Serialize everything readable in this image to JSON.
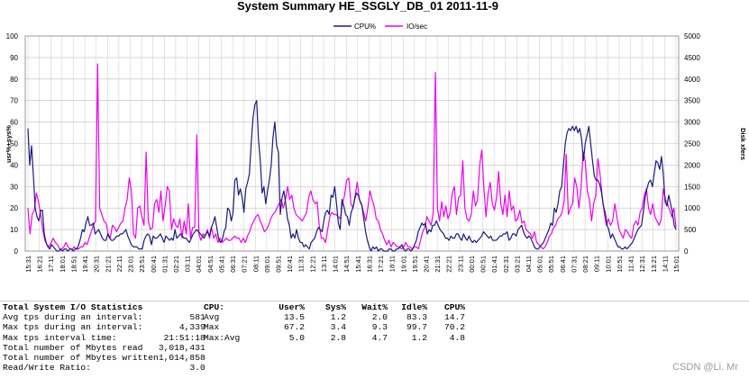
{
  "chart_data": {
    "type": "line",
    "title": "System Summary HE_SSGLY_DB_01  2011-11-9",
    "xlabel": "",
    "ylabel": "usr%+sys%",
    "y2label": "Disk xfers",
    "ylim": [
      0,
      100
    ],
    "y2lim": [
      0,
      5000
    ],
    "y_ticks": [
      0,
      10,
      20,
      30,
      40,
      50,
      60,
      70,
      80,
      90,
      100
    ],
    "y2_ticks": [
      0,
      500,
      1000,
      1500,
      2000,
      2500,
      3000,
      3500,
      4000,
      4500,
      5000
    ],
    "x_tick_labels": [
      "15:31",
      "16:21",
      "17:11",
      "18:01",
      "18:51",
      "19:41",
      "20:31",
      "21:21",
      "22:11",
      "23:01",
      "23:51",
      "00:41",
      "01:31",
      "02:21",
      "03:11",
      "04:01",
      "04:51",
      "05:41",
      "06:31",
      "07:21",
      "08:11",
      "09:01",
      "09:51",
      "10:41",
      "11:31",
      "12:21",
      "13:11",
      "14:01",
      "14:51",
      "15:41",
      "16:31",
      "17:21",
      "18:11",
      "19:01",
      "19:51",
      "20:41",
      "21:31",
      "22:21",
      "23:11",
      "00:01",
      "00:51",
      "01:41",
      "02:31",
      "03:21",
      "04:11",
      "05:01",
      "05:51",
      "06:41",
      "07:31",
      "08:21",
      "09:11",
      "10:01",
      "10:51",
      "11:41",
      "12:31",
      "13:21",
      "14:11",
      "15:01"
    ],
    "legend": [
      "CPU%",
      "IO/sec"
    ],
    "legend_position": "top",
    "grid": true,
    "series": [
      {
        "name": "CPU%",
        "axis": "left",
        "color": "#1a1a7e",
        "values": [
          57,
          40,
          49,
          35,
          20,
          16,
          14,
          19,
          19,
          8,
          4,
          2,
          1,
          3,
          2,
          1,
          0,
          0,
          1,
          0,
          1,
          1,
          0,
          1,
          1,
          0,
          1,
          1,
          3,
          6,
          10,
          9,
          13,
          16,
          12,
          12,
          13,
          8,
          9,
          10,
          8,
          6,
          5,
          5,
          8,
          6,
          5,
          5,
          6,
          7,
          7,
          8,
          8,
          9,
          10,
          7,
          5,
          3,
          2,
          2,
          2,
          1,
          1,
          1,
          5,
          7,
          8,
          7,
          3,
          7,
          6,
          6,
          7,
          8,
          6,
          4,
          7,
          6,
          5,
          6,
          5,
          10,
          6,
          7,
          8,
          7,
          6,
          6,
          5,
          4,
          6,
          8,
          9,
          10,
          9,
          8,
          7,
          6,
          8,
          9,
          7,
          11,
          13,
          16,
          11,
          6,
          4,
          5,
          9,
          11,
          20,
          19,
          14,
          18,
          33,
          34,
          26,
          29,
          25,
          18,
          29,
          32,
          36,
          50,
          62,
          68,
          70,
          52,
          42,
          27,
          30,
          22,
          28,
          33,
          40,
          53,
          60,
          49,
          46,
          17,
          25,
          28,
          22,
          15,
          12,
          6,
          8,
          6,
          10,
          6,
          4,
          4,
          2,
          3,
          2,
          1,
          4,
          5,
          6,
          9,
          11,
          10,
          9,
          14,
          18,
          19,
          17,
          26,
          25,
          30,
          22,
          13,
          10,
          24,
          21,
          17,
          16,
          12,
          18,
          20,
          24,
          27,
          26,
          23,
          21,
          15,
          9,
          5,
          2,
          0,
          2,
          1,
          2,
          0,
          1,
          1,
          0,
          0,
          0,
          1,
          1,
          0,
          0,
          1,
          1,
          2,
          3,
          1,
          0,
          1,
          1,
          0,
          1,
          3,
          5,
          9,
          11,
          13,
          12,
          13,
          8,
          10,
          9,
          12,
          12,
          14,
          12,
          10,
          9,
          8,
          6,
          6,
          5,
          7,
          6,
          6,
          8,
          8,
          6,
          5,
          8,
          6,
          5,
          7,
          5,
          4,
          5,
          4,
          5,
          6,
          7,
          9,
          8,
          7,
          6,
          7,
          5,
          5,
          5,
          6,
          7,
          7,
          8,
          8,
          9,
          5,
          6,
          8,
          8,
          7,
          10,
          11,
          12,
          9,
          7,
          6,
          7,
          6,
          4,
          2,
          1,
          1,
          2,
          3,
          4,
          6,
          8,
          10,
          13,
          12,
          20,
          18,
          22,
          28,
          30,
          40,
          50,
          55,
          57,
          56,
          58,
          56,
          58,
          55,
          57,
          52,
          42,
          50,
          54,
          58,
          50,
          42,
          35,
          33,
          33,
          31,
          27,
          21,
          18,
          12,
          10,
          6,
          8,
          6,
          4,
          2,
          2,
          1,
          1,
          2,
          1,
          2,
          3,
          4,
          6,
          8,
          10,
          11,
          12,
          18,
          25,
          29,
          32,
          33,
          30,
          36,
          42,
          41,
          38,
          44,
          36,
          23,
          21,
          26,
          22,
          18,
          12,
          10
        ]
      },
      {
        "name": "IO/sec",
        "axis": "right",
        "color": "#ee00ee",
        "values": [
          1000,
          400,
          850,
          950,
          1350,
          1150,
          850,
          500,
          250,
          150,
          100,
          200,
          300,
          200,
          150,
          50,
          50,
          100,
          200,
          100,
          50,
          50,
          100,
          50,
          50,
          100,
          100,
          200,
          150,
          300,
          450,
          600,
          700,
          4350,
          1000,
          850,
          700,
          650,
          400,
          300,
          600,
          550,
          450,
          550,
          650,
          700,
          1000,
          1200,
          1700,
          1400,
          400,
          300,
          1000,
          1050,
          800,
          600,
          2300,
          700,
          500,
          550,
          1100,
          1200,
          900,
          1400,
          700,
          1050,
          1500,
          1400,
          500,
          750,
          600,
          550,
          750,
          300,
          700,
          400,
          1100,
          300,
          550,
          550,
          2700,
          400,
          250,
          400,
          350,
          500,
          300,
          550,
          300,
          400,
          200,
          300,
          200,
          250,
          300,
          250,
          250,
          300,
          350,
          300,
          300,
          200,
          300,
          200,
          350,
          450,
          600,
          700,
          800,
          850,
          700,
          600,
          450,
          500,
          600,
          750,
          850,
          900,
          1000,
          1100,
          1200,
          1000,
          1200,
          1500,
          1200,
          1300,
          1000,
          850,
          800,
          750,
          700,
          800,
          900,
          1250,
          1400,
          1200,
          1100,
          1150,
          600,
          300,
          300,
          200,
          500,
          800,
          900,
          850,
          850,
          800,
          750,
          1100,
          1300,
          1650,
          1700,
          1100,
          1000,
          1300,
          1600,
          1200,
          1100,
          900,
          700,
          1000,
          1400,
          1200,
          1050,
          750,
          700,
          500,
          400,
          250,
          150,
          250,
          100,
          200,
          150,
          100,
          100,
          50,
          100,
          200,
          100,
          100,
          50,
          100,
          100,
          50,
          250,
          450,
          550,
          800,
          700,
          600,
          900,
          4150,
          1000,
          700,
          1150,
          800,
          1050,
          750,
          900,
          1350,
          1500,
          850,
          1250,
          1300,
          2100,
          1000,
          750,
          700,
          850,
          1400,
          1050,
          1200,
          2000,
          2350,
          1450,
          800,
          1350,
          1600,
          1100,
          950,
          1250,
          1850,
          1100,
          850,
          1300,
          800,
          1400,
          950,
          1050,
          700,
          750,
          950,
          650,
          700,
          500,
          450,
          400,
          300,
          450,
          200,
          150,
          100,
          50,
          100,
          200,
          350,
          400,
          550,
          600,
          750,
          800,
          900,
          1150,
          2250,
          850,
          1000,
          1100,
          1700,
          1500,
          1000,
          1450,
          2300,
          2100,
          1400,
          1200,
          700,
          1100,
          1300,
          2150,
          1800,
          1300,
          900,
          600,
          750,
          600,
          700,
          1100,
          800,
          500,
          400,
          300,
          500,
          450,
          350,
          300,
          600,
          700,
          600,
          900,
          1000,
          1300,
          1450,
          1000,
          850,
          1100,
          800,
          700,
          600,
          750,
          1450,
          1200,
          1100,
          950,
          800,
          1000,
          550
        ]
      }
    ]
  },
  "io_stats": {
    "title": "Total System I/O Statistics",
    "rows": [
      {
        "label": "Avg tps during an interval:",
        "value": "581"
      },
      {
        "label": "Max tps during an interval:",
        "value": "4,339"
      },
      {
        "label": "Max tps interval time:",
        "value": "21:51:18"
      },
      {
        "label": "Total number of Mbytes read",
        "value": "3,018,431"
      },
      {
        "label": "Total number of Mbytes written",
        "value": "1,014,858"
      },
      {
        "label": "Read/Write Ratio:",
        "value": "3.0"
      }
    ]
  },
  "cpu_stats": {
    "headers": [
      "CPU:",
      "User%",
      "Sys%",
      "Wait%",
      "Idle%",
      "CPU%"
    ],
    "rows": [
      [
        "Avg",
        "13.5",
        "1.2",
        "2.0",
        "83.3",
        "14.7"
      ],
      [
        "Max",
        "67.2",
        "3.4",
        "9.3",
        "99.7",
        "70.2"
      ],
      [
        "Max:Avg",
        "5.0",
        "2.8",
        "4.7",
        "1.2",
        "4.8"
      ]
    ]
  },
  "watermark": "CSDN @Li. Mr"
}
